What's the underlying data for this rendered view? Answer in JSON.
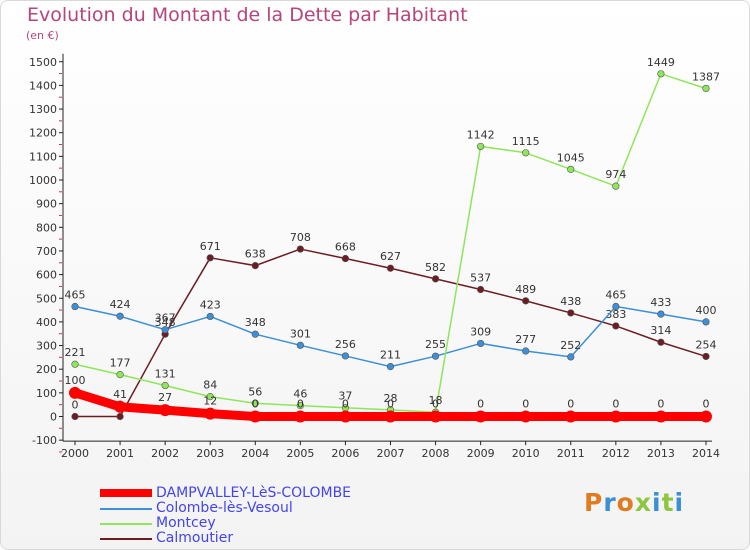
{
  "title": "Evolution du Montant de la Dette par Habitant",
  "unit": "(en €)",
  "logo": {
    "text": "Proxiti",
    "colors": [
      "#e07b1f",
      "#3a8fd6",
      "#e07b1f",
      "#8dc63f",
      "#3a8fd6",
      "#8dc63f",
      "#3a8fd6"
    ]
  },
  "chart_data": {
    "type": "line",
    "title": "Evolution du Montant de la Dette par Habitant",
    "ylabel": "(en €)",
    "xlabel": "",
    "x": [
      2000,
      2001,
      2002,
      2003,
      2004,
      2005,
      2006,
      2007,
      2008,
      2009,
      2010,
      2011,
      2012,
      2013,
      2014
    ],
    "ylim": [
      -100,
      1500
    ],
    "yticks": [
      -100,
      0,
      100,
      200,
      300,
      400,
      500,
      600,
      700,
      800,
      900,
      1000,
      1100,
      1200,
      1300,
      1400,
      1500
    ],
    "grid": false,
    "legend": "bottom-left",
    "series": [
      {
        "name": "DAMPVALLEY-LèS-COLOMBE",
        "color": "#ff0000",
        "values": [
          100,
          41,
          27,
          12,
          0,
          0,
          0,
          0,
          0,
          0,
          0,
          0,
          0,
          0,
          0
        ]
      },
      {
        "name": "Colombe-lès-Vesoul",
        "color": "#3d8fd6",
        "values": [
          465,
          424,
          367,
          423,
          348,
          301,
          256,
          211,
          255,
          309,
          277,
          252,
          465,
          433,
          400
        ]
      },
      {
        "name": "Montcey",
        "color": "#8ee65a",
        "values": [
          221,
          177,
          131,
          84,
          56,
          46,
          37,
          28,
          18,
          1142,
          1115,
          1045,
          974,
          1449,
          1387
        ]
      },
      {
        "name": "Calmoutier",
        "color": "#6b1d24",
        "values": [
          0,
          0,
          348,
          671,
          638,
          708,
          668,
          627,
          582,
          537,
          489,
          438,
          383,
          314,
          254
        ]
      }
    ]
  }
}
